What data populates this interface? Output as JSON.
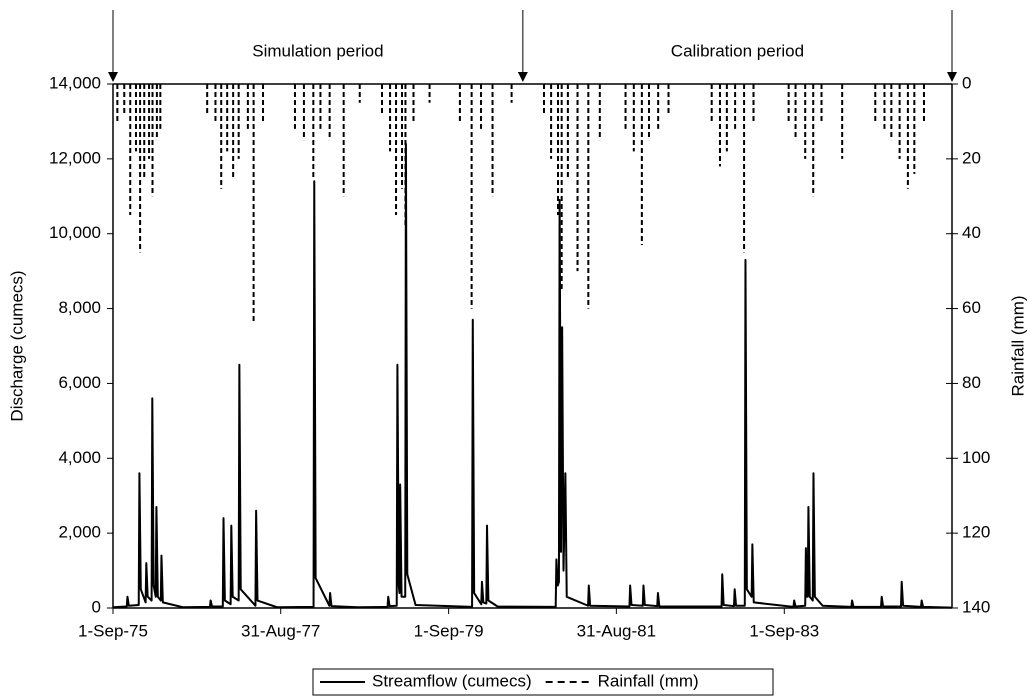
{
  "chart_data": {
    "type": "line",
    "ylabel": "Discharge (cumecs)",
    "y2label": "Rainfall (mm)",
    "xlim": [
      "1975-09-01",
      "1985-08-31"
    ],
    "xticks": [
      {
        "value": "1975-09-01",
        "label": "1-Sep-75"
      },
      {
        "value": "1977-08-31",
        "label": "31-Aug-77"
      },
      {
        "value": "1979-09-01",
        "label": "1-Sep-79"
      },
      {
        "value": "1981-08-31",
        "label": "31-Aug-81"
      },
      {
        "value": "1983-09-01",
        "label": "1-Sep-83"
      }
    ],
    "ylim": [
      0,
      14000
    ],
    "yticks": [
      {
        "value": 0,
        "label": "0"
      },
      {
        "value": 2000,
        "label": "2,000"
      },
      {
        "value": 4000,
        "label": "4,000"
      },
      {
        "value": 6000,
        "label": "6,000"
      },
      {
        "value": 8000,
        "label": "8,000"
      },
      {
        "value": 10000,
        "label": "10,000"
      },
      {
        "value": 12000,
        "label": "12,000"
      },
      {
        "value": 14000,
        "label": "14,000"
      }
    ],
    "y2lim": [
      0,
      140
    ],
    "y2_inverted": true,
    "y2ticks": [
      0,
      20,
      40,
      60,
      80,
      100,
      120,
      140
    ],
    "annotations": [
      {
        "text": "Simulation period",
        "from": "1975-09-01",
        "to": "1980-07-20"
      },
      {
        "text": "Calibration period",
        "from": "1980-07-20",
        "to": "1985-08-31"
      }
    ],
    "series": [
      {
        "name": "Streamflow (cumecs)",
        "color": "#000000",
        "style": "solid",
        "axis": "y",
        "x": [
          "1975-09-01",
          "1975-10-31",
          "1975-11-03",
          "1975-11-09",
          "1975-12-22",
          "1975-12-25",
          "1975-12-31",
          "1976-01-21",
          "1976-01-24",
          "1976-01-30",
          "1976-02-16",
          "1976-02-19",
          "1976-02-25",
          "1976-03-05",
          "1976-03-08",
          "1976-03-14",
          "1976-03-27",
          "1976-03-30",
          "1976-04-05",
          "1976-07-01",
          "1976-10-27",
          "1976-10-30",
          "1976-11-05",
          "1976-12-22",
          "1976-12-25",
          "1976-12-31",
          "1977-01-25",
          "1977-01-28",
          "1977-02-03",
          "1977-03-01",
          "1977-03-04",
          "1977-03-10",
          "1977-05-13",
          "1977-05-16",
          "1977-05-22",
          "1977-08-15",
          "1978-01-21",
          "1978-01-24",
          "1978-01-30",
          "1978-03-31",
          "1978-04-03",
          "1978-04-09",
          "1978-08-01",
          "1978-12-09",
          "1978-12-12",
          "1978-12-18",
          "1979-01-18",
          "1979-01-21",
          "1979-01-27",
          "1979-01-30",
          "1979-02-02",
          "1979-02-08",
          "1979-02-24",
          "1979-02-27",
          "1979-03-05",
          "1979-04-10",
          "1979-12-12",
          "1979-12-15",
          "1979-12-21",
          "1980-01-21",
          "1980-01-24",
          "1980-01-30",
          "1980-02-12",
          "1980-02-15",
          "1980-02-21",
          "1980-04-01",
          "1980-12-10",
          "1980-12-13",
          "1980-12-19",
          "1980-12-24",
          "1980-12-27",
          "1981-01-02",
          "1981-01-07",
          "1981-01-13",
          "1981-01-21",
          "1981-01-27",
          "1981-04-30",
          "1981-05-03",
          "1981-05-09",
          "1981-10-27",
          "1981-10-30",
          "1981-11-05",
          "1981-12-24",
          "1981-12-27",
          "1982-01-02",
          "1982-02-25",
          "1982-02-28",
          "1982-03-06",
          "1982-12-02",
          "1982-12-05",
          "1982-12-11",
          "1983-01-25",
          "1983-01-28",
          "1983-02-03",
          "1983-03-13",
          "1983-03-16",
          "1983-03-22",
          "1983-04-12",
          "1983-04-15",
          "1983-04-21",
          "1983-10-11",
          "1983-10-14",
          "1983-10-20",
          "1983-12-01",
          "1983-12-04",
          "1983-12-09",
          "1983-12-12",
          "1983-12-15",
          "1983-12-21",
          "1984-01-03",
          "1984-01-06",
          "1984-01-12",
          "1984-02-15",
          "1984-06-19",
          "1984-06-22",
          "1984-06-28",
          "1984-10-26",
          "1984-10-29",
          "1984-11-04",
          "1985-01-21",
          "1985-01-24",
          "1985-01-30",
          "1985-04-18",
          "1985-04-21",
          "1985-04-27",
          "1985-08-31"
        ],
        "values": [
          20,
          40,
          300,
          60,
          80,
          3600,
          500,
          150,
          1200,
          300,
          200,
          5600,
          600,
          300,
          2700,
          300,
          200,
          1400,
          150,
          20,
          30,
          200,
          40,
          40,
          2400,
          200,
          100,
          2200,
          300,
          200,
          6500,
          500,
          60,
          2600,
          200,
          20,
          30,
          11400,
          800,
          60,
          400,
          50,
          20,
          30,
          300,
          50,
          60,
          6500,
          600,
          400,
          3300,
          300,
          300,
          12400,
          900,
          80,
          30,
          7700,
          400,
          100,
          700,
          150,
          120,
          2200,
          200,
          40,
          30,
          1300,
          600,
          700,
          10900,
          1500,
          7500,
          1000,
          3600,
          300,
          60,
          600,
          60,
          40,
          600,
          80,
          60,
          600,
          80,
          50,
          400,
          40,
          40,
          900,
          80,
          50,
          500,
          60,
          60,
          9300,
          500,
          300,
          1700,
          150,
          30,
          200,
          40,
          60,
          1600,
          300,
          300,
          2700,
          300,
          200,
          3600,
          300,
          60,
          30,
          200,
          30,
          30,
          300,
          40,
          40,
          700,
          60,
          30,
          200,
          30,
          10
        ]
      },
      {
        "name": "Rainfall (mm)",
        "color": "#000000",
        "style": "dashed",
        "axis": "y2",
        "x": [
          "1975-09-20",
          "1975-10-20",
          "1975-11-15",
          "1975-12-10",
          "1975-12-28",
          "1976-01-15",
          "1976-02-05",
          "1976-02-20",
          "1976-03-10",
          "1976-03-25",
          "1976-10-15",
          "1976-11-20",
          "1976-12-15",
          "1977-01-10",
          "1977-02-05",
          "1977-03-01",
          "1977-04-10",
          "1977-05-05",
          "1977-06-15",
          "1977-11-01",
          "1977-12-10",
          "1978-01-20",
          "1978-02-20",
          "1978-04-01",
          "1978-06-01",
          "1978-08-10",
          "1978-11-15",
          "1978-12-20",
          "1979-01-15",
          "1979-02-10",
          "1979-02-25",
          "1979-04-01",
          "1979-06-10",
          "1979-10-20",
          "1979-12-10",
          "1980-01-20",
          "1980-03-10",
          "1980-06-01",
          "1980-10-20",
          "1980-11-20",
          "1980-12-20",
          "1981-01-05",
          "1981-02-01",
          "1981-03-15",
          "1981-05-01",
          "1981-06-20",
          "1981-10-10",
          "1981-11-15",
          "1981-12-20",
          "1982-01-20",
          "1982-03-01",
          "1982-04-15",
          "1982-10-20",
          "1982-11-25",
          "1982-12-25",
          "1983-01-30",
          "1983-03-10",
          "1983-04-20",
          "1983-09-20",
          "1983-10-20",
          "1983-12-01",
          "1984-01-05",
          "1984-02-10",
          "1984-05-10",
          "1984-10-01",
          "1984-11-10",
          "1984-12-10",
          "1985-01-15",
          "1985-02-20",
          "1985-03-20",
          "1985-05-01"
        ],
        "values": [
          10,
          8,
          35,
          18,
          45,
          25,
          20,
          30,
          15,
          12,
          8,
          10,
          28,
          18,
          25,
          20,
          12,
          64,
          10,
          12,
          15,
          25,
          12,
          15,
          30,
          5,
          8,
          18,
          35,
          28,
          38,
          10,
          5,
          10,
          60,
          12,
          30,
          5,
          8,
          20,
          35,
          55,
          25,
          50,
          60,
          15,
          12,
          18,
          43,
          15,
          12,
          8,
          10,
          22,
          18,
          12,
          45,
          10,
          10,
          15,
          20,
          30,
          10,
          20,
          10,
          12,
          15,
          20,
          28,
          24,
          10
        ]
      }
    ]
  }
}
